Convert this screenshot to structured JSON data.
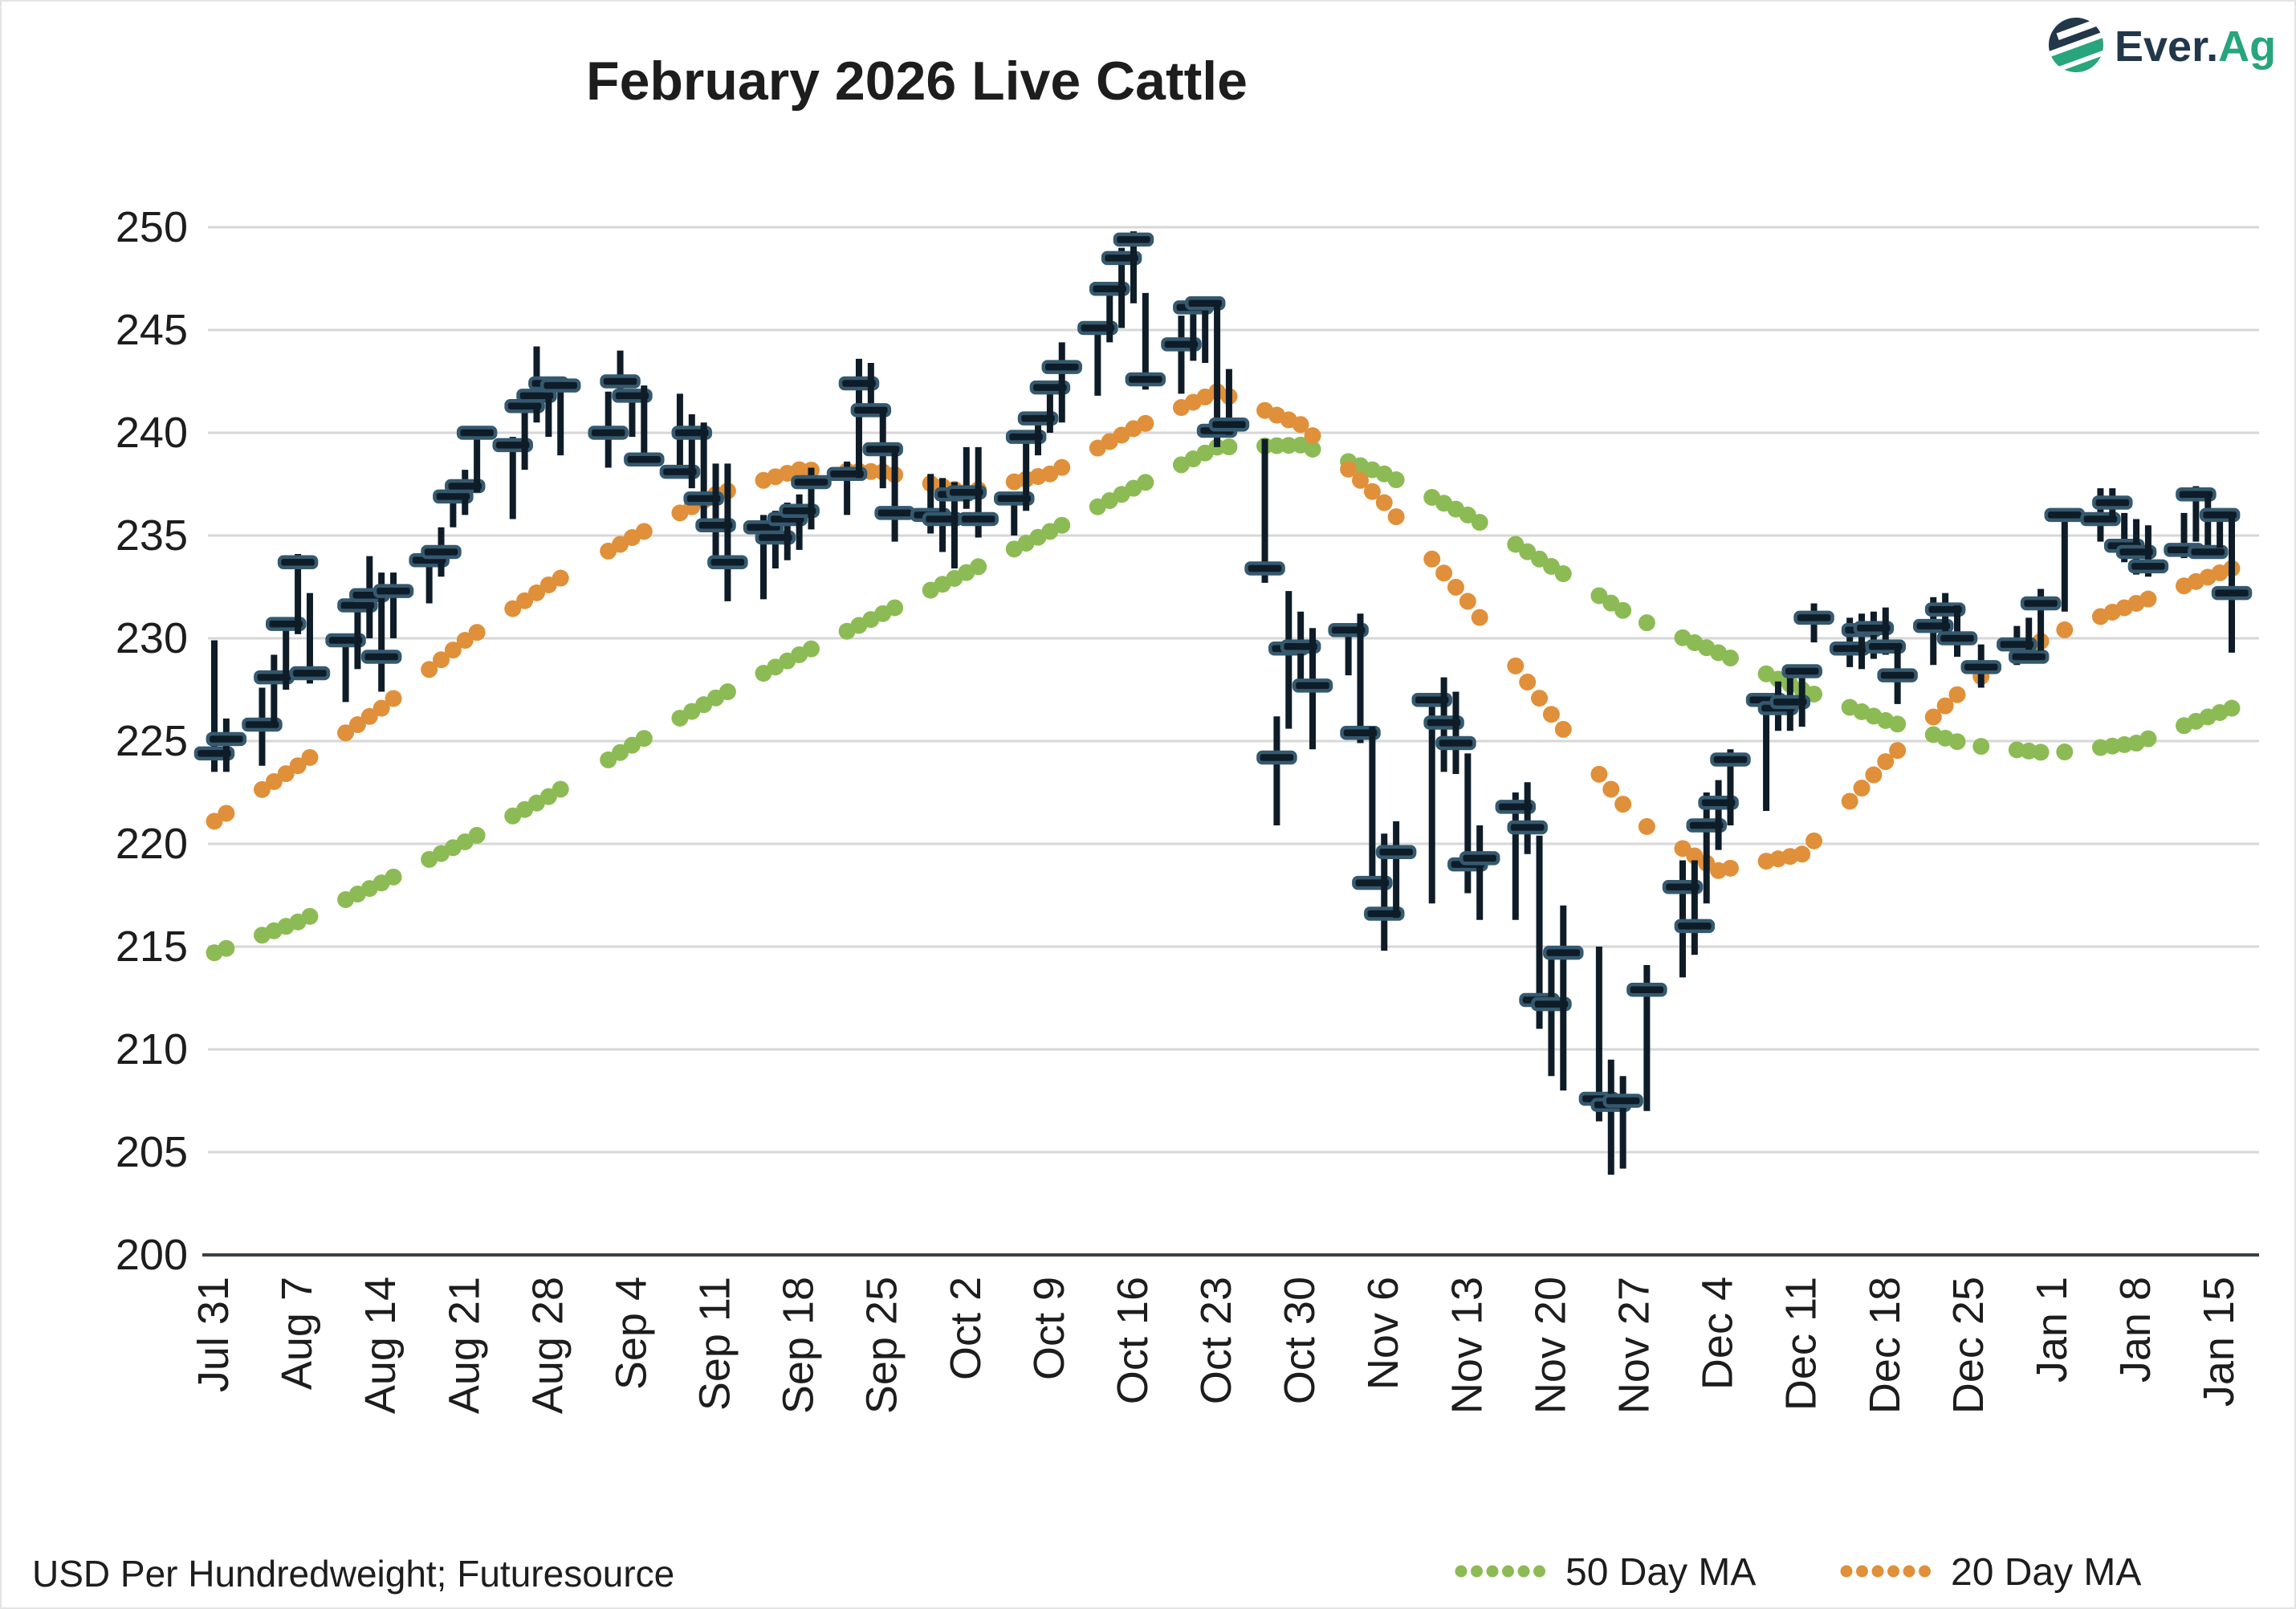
{
  "title": "February 2026 Live Cattle",
  "footer": {
    "note": "USD Per Hundredweight; Futuresource"
  },
  "logo": {
    "text_primary": "Ever.",
    "text_accent": "Ag",
    "icon": "leaf-globe-icon"
  },
  "legend": [
    {
      "label": "50 Day MA",
      "color": "#8cbb55"
    },
    {
      "label": "20 Day MA",
      "color": "#e0903a"
    }
  ],
  "colors": {
    "bar": "#0e1c28",
    "close_tick_fill": "#0e1c28",
    "close_tick_stroke": "#35596e",
    "ma50": "#8cbb55",
    "ma20": "#e0903a",
    "gridline": "#d7d7d7",
    "axis_line": "#3a4046",
    "text": "#1d1d1d",
    "logo_navy": "#22374a",
    "logo_green": "#27a57c"
  },
  "chart_data": {
    "type": "bar",
    "subtype": "daily-price-bars-high-low-close",
    "title": "February 2026 Live Cattle",
    "xlabel": "",
    "ylabel": "USD Per Hundredweight",
    "ylim": [
      200,
      250
    ],
    "ytick_interval": 5,
    "ytick_labels": [
      "200",
      "205",
      "210",
      "215",
      "220",
      "225",
      "230",
      "235",
      "240",
      "245",
      "250"
    ],
    "grid": true,
    "legend_position": "bottom-right",
    "x_tick_labels": [
      "Jul 31",
      "Aug 7",
      "Aug 14",
      "Aug 21",
      "Aug 28",
      "Sep 4",
      "Sep 11",
      "Sep 18",
      "Sep 25",
      "Oct 2",
      "Oct 9",
      "Oct 16",
      "Oct 23",
      "Oct 30",
      "Nov 6",
      "Nov 13",
      "Nov 20",
      "Nov 27",
      "Dec 4",
      "Dec 11",
      "Dec 18",
      "Dec 25",
      "Jan 1",
      "Jan 8",
      "Jan 15"
    ],
    "x_tick_day_offsets": [
      0,
      7,
      14,
      21,
      28,
      35,
      42,
      49,
      56,
      63,
      70,
      77,
      84,
      91,
      98,
      105,
      112,
      119,
      126,
      133,
      140,
      147,
      154,
      161,
      168
    ],
    "bars_columns": [
      "day_offset",
      "high",
      "low",
      "close",
      "date"
    ],
    "bars": [
      [
        0,
        229.9,
        223.5,
        224.4,
        "Jul 31"
      ],
      [
        1,
        226.1,
        223.5,
        225.1,
        "Aug 1"
      ],
      [
        4,
        227.6,
        223.8,
        225.8,
        "Aug 4"
      ],
      [
        5,
        229.2,
        225.8,
        228.1,
        "Aug 5"
      ],
      [
        6,
        230.9,
        227.5,
        230.7,
        "Aug 6"
      ],
      [
        7,
        234.1,
        230.2,
        233.7,
        "Aug 7"
      ],
      [
        8,
        232.2,
        227.8,
        228.3,
        "Aug 8"
      ],
      [
        11,
        230.2,
        226.9,
        229.9,
        "Aug 11"
      ],
      [
        12,
        232.2,
        228.5,
        231.6,
        "Aug 12"
      ],
      [
        13,
        234.0,
        230.0,
        232.1,
        "Aug 13"
      ],
      [
        14,
        233.2,
        227.4,
        229.1,
        "Aug 14"
      ],
      [
        15,
        233.2,
        230.0,
        232.3,
        "Aug 15"
      ],
      [
        18,
        234.4,
        231.7,
        233.8,
        "Aug 18"
      ],
      [
        19,
        235.4,
        233.0,
        234.2,
        "Aug 19"
      ],
      [
        20,
        237.6,
        235.4,
        236.9,
        "Aug 20"
      ],
      [
        21,
        238.2,
        236.0,
        237.4,
        "Aug 21"
      ],
      [
        22,
        240.2,
        237.1,
        240.0,
        "Aug 22"
      ],
      [
        25,
        239.8,
        235.8,
        239.4,
        "Aug 25"
      ],
      [
        26,
        241.4,
        238.2,
        241.3,
        "Aug 26"
      ],
      [
        27,
        244.2,
        240.5,
        241.8,
        "Aug 27"
      ],
      [
        28,
        242.7,
        239.8,
        242.4,
        "Aug 28"
      ],
      [
        29,
        242.4,
        238.9,
        242.3,
        "Aug 29"
      ],
      [
        33,
        242.0,
        238.3,
        240.0,
        "Sep 2"
      ],
      [
        34,
        244.0,
        241.5,
        242.5,
        "Sep 3"
      ],
      [
        35,
        241.9,
        239.8,
        241.8,
        "Sep 4"
      ],
      [
        36,
        242.3,
        238.5,
        238.7,
        "Sep 5"
      ],
      [
        39,
        241.9,
        237.9,
        238.1,
        "Sep 8"
      ],
      [
        40,
        240.9,
        237.3,
        240.0,
        "Sep 9"
      ],
      [
        41,
        240.5,
        235.2,
        236.8,
        "Sep 10"
      ],
      [
        42,
        238.5,
        234.0,
        235.5,
        "Sep 11"
      ],
      [
        43,
        238.5,
        231.8,
        233.7,
        "Sep 12"
      ],
      [
        46,
        236.0,
        231.9,
        235.4,
        "Sep 15"
      ],
      [
        47,
        236.2,
        233.4,
        234.9,
        "Sep 16"
      ],
      [
        48,
        236.6,
        233.8,
        235.8,
        "Sep 17"
      ],
      [
        49,
        237.0,
        234.3,
        236.2,
        "Sep 18"
      ],
      [
        50,
        238.3,
        235.3,
        237.6,
        "Sep 19"
      ],
      [
        53,
        238.6,
        236.0,
        238.0,
        "Sep 22"
      ],
      [
        54,
        243.6,
        237.8,
        242.4,
        "Sep 23"
      ],
      [
        55,
        243.4,
        240.9,
        241.1,
        "Sep 24"
      ],
      [
        56,
        241.0,
        237.3,
        239.2,
        "Sep 25"
      ],
      [
        57,
        239.2,
        234.7,
        236.1,
        "Sep 26"
      ],
      [
        60,
        238.0,
        235.1,
        236.0,
        "Sep 29"
      ],
      [
        61,
        237.8,
        234.2,
        235.8,
        "Sep 30"
      ],
      [
        62,
        237.6,
        233.4,
        237.0,
        "Oct 1"
      ],
      [
        63,
        239.3,
        236.3,
        237.1,
        "Oct 2"
      ],
      [
        64,
        239.3,
        234.9,
        235.8,
        "Oct 3"
      ],
      [
        67,
        236.9,
        235.0,
        236.8,
        "Oct 6"
      ],
      [
        68,
        240.0,
        236.2,
        239.8,
        "Oct 7"
      ],
      [
        69,
        241.0,
        238.9,
        240.7,
        "Oct 8"
      ],
      [
        70,
        242.5,
        240.0,
        242.2,
        "Oct 9"
      ],
      [
        71,
        244.4,
        240.5,
        243.2,
        "Oct 10"
      ],
      [
        74,
        245.3,
        241.8,
        245.1,
        "Oct 13"
      ],
      [
        75,
        247.3,
        244.4,
        247.0,
        "Oct 14"
      ],
      [
        76,
        249.0,
        245.1,
        248.5,
        "Oct 15"
      ],
      [
        77,
        249.8,
        246.3,
        249.4,
        "Oct 16"
      ],
      [
        78,
        246.8,
        242.1,
        242.6,
        "Oct 17"
      ],
      [
        81,
        245.7,
        241.9,
        244.3,
        "Oct 20"
      ],
      [
        82,
        246.5,
        243.5,
        246.1,
        "Oct 21"
      ],
      [
        83,
        246.6,
        243.4,
        246.3,
        "Oct 22"
      ],
      [
        84,
        246.4,
        239.3,
        240.1,
        "Oct 23"
      ],
      [
        85,
        243.1,
        239.9,
        240.4,
        "Oct 24"
      ],
      [
        88,
        239.7,
        232.7,
        233.4,
        "Oct 27"
      ],
      [
        89,
        226.2,
        220.9,
        224.2,
        "Oct 28"
      ],
      [
        90,
        232.3,
        225.6,
        229.5,
        "Oct 29"
      ],
      [
        91,
        231.3,
        227.6,
        229.6,
        "Oct 30"
      ],
      [
        92,
        230.5,
        224.6,
        227.7,
        "Oct 31"
      ],
      [
        95,
        230.7,
        228.2,
        230.4,
        "Nov 3"
      ],
      [
        96,
        231.2,
        224.9,
        225.4,
        "Nov 4"
      ],
      [
        97,
        225.7,
        217.9,
        218.1,
        "Nov 5"
      ],
      [
        98,
        220.5,
        214.8,
        216.6,
        "Nov 6"
      ],
      [
        99,
        221.1,
        216.4,
        219.6,
        "Nov 7"
      ],
      [
        102,
        227.1,
        217.1,
        227.0,
        "Nov 10"
      ],
      [
        103,
        228.1,
        223.5,
        225.9,
        "Nov 11"
      ],
      [
        104,
        227.4,
        223.4,
        224.9,
        "Nov 12"
      ],
      [
        105,
        224.4,
        217.6,
        219.0,
        "Nov 13"
      ],
      [
        106,
        220.9,
        216.3,
        219.3,
        "Nov 14"
      ],
      [
        109,
        222.5,
        216.3,
        221.8,
        "Nov 17"
      ],
      [
        110,
        223.0,
        219.5,
        220.8,
        "Nov 18"
      ],
      [
        111,
        220.4,
        211.0,
        212.4,
        "Nov 19"
      ],
      [
        112,
        214.5,
        208.7,
        212.2,
        "Nov 20"
      ],
      [
        113,
        217.0,
        208.0,
        214.7,
        "Nov 21"
      ],
      [
        116,
        215.0,
        206.5,
        207.6,
        "Nov 24"
      ],
      [
        117,
        209.5,
        203.9,
        207.3,
        "Nov 25"
      ],
      [
        118,
        208.7,
        204.2,
        207.5,
        "Nov 26"
      ],
      [
        120,
        214.1,
        207.0,
        212.9,
        "Nov 28"
      ],
      [
        123,
        219.2,
        213.5,
        217.9,
        "Dec 1"
      ],
      [
        124,
        219.2,
        214.6,
        216.0,
        "Dec 2"
      ],
      [
        125,
        222.5,
        217.1,
        220.9,
        "Dec 3"
      ],
      [
        126,
        223.1,
        219.7,
        222.0,
        "Dec 4"
      ],
      [
        127,
        224.6,
        220.9,
        224.1,
        "Dec 5"
      ],
      [
        130,
        227.3,
        221.6,
        227.0,
        "Dec 8"
      ],
      [
        131,
        227.9,
        225.5,
        226.6,
        "Dec 9"
      ],
      [
        132,
        228.5,
        225.5,
        226.9,
        "Dec 10"
      ],
      [
        133,
        228.6,
        225.7,
        228.4,
        "Dec 11"
      ],
      [
        134,
        231.7,
        229.8,
        231.0,
        "Dec 12"
      ],
      [
        137,
        231.0,
        228.6,
        229.5,
        "Dec 15"
      ],
      [
        138,
        231.2,
        228.5,
        230.4,
        "Dec 16"
      ],
      [
        139,
        231.3,
        229.0,
        230.5,
        "Dec 17"
      ],
      [
        140,
        231.5,
        229.2,
        229.6,
        "Dec 18"
      ],
      [
        141,
        229.7,
        226.8,
        228.2,
        "Dec 19"
      ],
      [
        144,
        232.0,
        228.7,
        230.6,
        "Dec 22"
      ],
      [
        145,
        232.2,
        229.9,
        231.4,
        "Dec 23"
      ],
      [
        146,
        231.6,
        229.1,
        230.0,
        "Dec 24"
      ],
      [
        148,
        229.7,
        227.6,
        228.6,
        "Dec 26"
      ],
      [
        151,
        230.6,
        228.7,
        229.7,
        "Dec 29"
      ],
      [
        152,
        231.0,
        229.0,
        229.1,
        "Dec 30"
      ],
      [
        153,
        232.4,
        229.4,
        231.7,
        "Dec 31"
      ],
      [
        155,
        236.1,
        231.3,
        236.0,
        "Jan 2"
      ],
      [
        158,
        237.3,
        234.7,
        235.8,
        "Jan 5"
      ],
      [
        159,
        237.3,
        235.9,
        236.6,
        "Jan 6"
      ],
      [
        160,
        236.1,
        233.7,
        234.5,
        "Jan 7"
      ],
      [
        161,
        235.8,
        233.1,
        234.2,
        "Jan 8"
      ],
      [
        162,
        235.5,
        233.0,
        233.5,
        "Jan 9"
      ],
      [
        165,
        236.1,
        233.9,
        234.3,
        "Jan 12"
      ],
      [
        166,
        237.4,
        234.7,
        237.0,
        "Jan 13"
      ],
      [
        167,
        236.9,
        234.0,
        234.2,
        "Jan 14"
      ],
      [
        168,
        236.2,
        234.4,
        236.0,
        "Jan 15"
      ],
      [
        169,
        236.1,
        229.3,
        232.2,
        "Jan 16"
      ]
    ],
    "series": [
      {
        "name": "50 Day MA",
        "color": "#8cbb55",
        "style": "dotted",
        "anchor_columns": [
          "day_offset",
          "value"
        ],
        "anchors": [
          [
            0,
            214.7
          ],
          [
            7,
            216.2
          ],
          [
            14,
            218.1
          ],
          [
            21,
            220.1
          ],
          [
            28,
            222.3
          ],
          [
            35,
            224.8
          ],
          [
            42,
            227.1
          ],
          [
            49,
            229.2
          ],
          [
            56,
            231.2
          ],
          [
            63,
            233.2
          ],
          [
            70,
            235.2
          ],
          [
            77,
            237.3
          ],
          [
            84,
            239.3
          ],
          [
            91,
            239.4
          ],
          [
            98,
            238.0
          ],
          [
            105,
            236.0
          ],
          [
            112,
            233.5
          ],
          [
            119,
            231.0
          ],
          [
            126,
            229.3
          ],
          [
            133,
            227.5
          ],
          [
            140,
            226.0
          ],
          [
            147,
            224.8
          ],
          [
            154,
            224.4
          ],
          [
            161,
            224.9
          ],
          [
            169,
            226.6
          ]
        ]
      },
      {
        "name": "20 Day MA",
        "color": "#e0903a",
        "style": "dotted",
        "anchor_columns": [
          "day_offset",
          "value"
        ],
        "anchors": [
          [
            0,
            221.1
          ],
          [
            7,
            223.8
          ],
          [
            14,
            226.6
          ],
          [
            21,
            229.9
          ],
          [
            28,
            232.6
          ],
          [
            35,
            234.9
          ],
          [
            42,
            237.0
          ],
          [
            49,
            238.2
          ],
          [
            56,
            238.1
          ],
          [
            63,
            237.1
          ],
          [
            70,
            238.0
          ],
          [
            77,
            240.2
          ],
          [
            84,
            242.0
          ],
          [
            91,
            240.4
          ],
          [
            98,
            236.6
          ],
          [
            105,
            231.8
          ],
          [
            112,
            226.3
          ],
          [
            119,
            221.2
          ],
          [
            126,
            218.7
          ],
          [
            133,
            219.5
          ],
          [
            140,
            224.0
          ],
          [
            147,
            227.8
          ],
          [
            154,
            230.2
          ],
          [
            161,
            231.7
          ],
          [
            169,
            233.4
          ]
        ]
      }
    ]
  }
}
